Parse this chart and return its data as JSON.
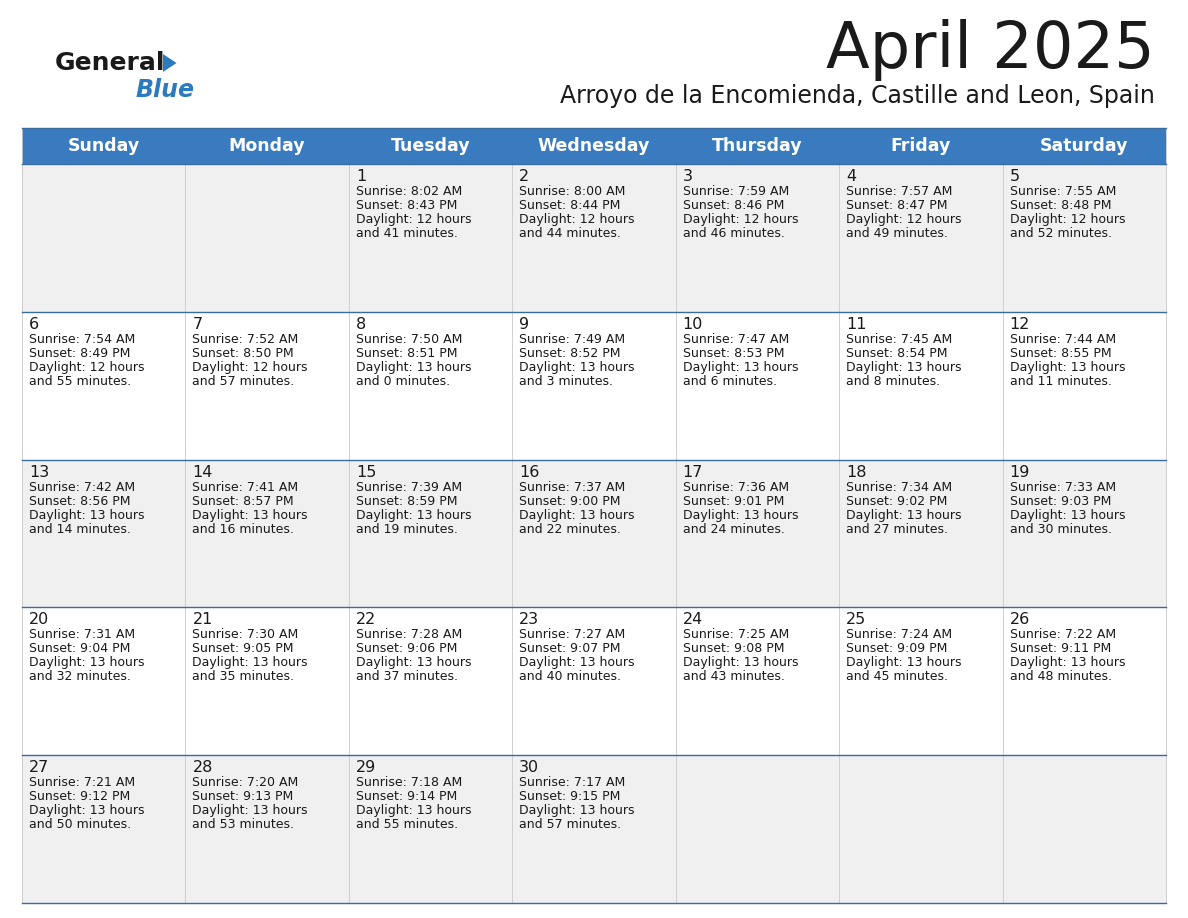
{
  "title": "April 2025",
  "subtitle": "Arroyo de la Encomienda, Castille and Leon, Spain",
  "header_bg": "#3a7abf",
  "header_text_color": "#ffffff",
  "row_bg_odd": "#f0f0f0",
  "row_bg_even": "#ffffff",
  "border_color": "#3a6b9f",
  "day_headers": [
    "Sunday",
    "Monday",
    "Tuesday",
    "Wednesday",
    "Thursday",
    "Friday",
    "Saturday"
  ],
  "logo_general_color": "#1a1a1a",
  "logo_blue_color": "#2b7bbf",
  "logo_triangle_color": "#2b7bbf",
  "title_color": "#1a1a1a",
  "text_color": "#1a1a1a",
  "weeks": [
    [
      {
        "day": "",
        "sunrise": "",
        "sunset": "",
        "daylight": ""
      },
      {
        "day": "",
        "sunrise": "",
        "sunset": "",
        "daylight": ""
      },
      {
        "day": "1",
        "sunrise": "Sunrise: 8:02 AM",
        "sunset": "Sunset: 8:43 PM",
        "daylight": "Daylight: 12 hours\nand 41 minutes."
      },
      {
        "day": "2",
        "sunrise": "Sunrise: 8:00 AM",
        "sunset": "Sunset: 8:44 PM",
        "daylight": "Daylight: 12 hours\nand 44 minutes."
      },
      {
        "day": "3",
        "sunrise": "Sunrise: 7:59 AM",
        "sunset": "Sunset: 8:46 PM",
        "daylight": "Daylight: 12 hours\nand 46 minutes."
      },
      {
        "day": "4",
        "sunrise": "Sunrise: 7:57 AM",
        "sunset": "Sunset: 8:47 PM",
        "daylight": "Daylight: 12 hours\nand 49 minutes."
      },
      {
        "day": "5",
        "sunrise": "Sunrise: 7:55 AM",
        "sunset": "Sunset: 8:48 PM",
        "daylight": "Daylight: 12 hours\nand 52 minutes."
      }
    ],
    [
      {
        "day": "6",
        "sunrise": "Sunrise: 7:54 AM",
        "sunset": "Sunset: 8:49 PM",
        "daylight": "Daylight: 12 hours\nand 55 minutes."
      },
      {
        "day": "7",
        "sunrise": "Sunrise: 7:52 AM",
        "sunset": "Sunset: 8:50 PM",
        "daylight": "Daylight: 12 hours\nand 57 minutes."
      },
      {
        "day": "8",
        "sunrise": "Sunrise: 7:50 AM",
        "sunset": "Sunset: 8:51 PM",
        "daylight": "Daylight: 13 hours\nand 0 minutes."
      },
      {
        "day": "9",
        "sunrise": "Sunrise: 7:49 AM",
        "sunset": "Sunset: 8:52 PM",
        "daylight": "Daylight: 13 hours\nand 3 minutes."
      },
      {
        "day": "10",
        "sunrise": "Sunrise: 7:47 AM",
        "sunset": "Sunset: 8:53 PM",
        "daylight": "Daylight: 13 hours\nand 6 minutes."
      },
      {
        "day": "11",
        "sunrise": "Sunrise: 7:45 AM",
        "sunset": "Sunset: 8:54 PM",
        "daylight": "Daylight: 13 hours\nand 8 minutes."
      },
      {
        "day": "12",
        "sunrise": "Sunrise: 7:44 AM",
        "sunset": "Sunset: 8:55 PM",
        "daylight": "Daylight: 13 hours\nand 11 minutes."
      }
    ],
    [
      {
        "day": "13",
        "sunrise": "Sunrise: 7:42 AM",
        "sunset": "Sunset: 8:56 PM",
        "daylight": "Daylight: 13 hours\nand 14 minutes."
      },
      {
        "day": "14",
        "sunrise": "Sunrise: 7:41 AM",
        "sunset": "Sunset: 8:57 PM",
        "daylight": "Daylight: 13 hours\nand 16 minutes."
      },
      {
        "day": "15",
        "sunrise": "Sunrise: 7:39 AM",
        "sunset": "Sunset: 8:59 PM",
        "daylight": "Daylight: 13 hours\nand 19 minutes."
      },
      {
        "day": "16",
        "sunrise": "Sunrise: 7:37 AM",
        "sunset": "Sunset: 9:00 PM",
        "daylight": "Daylight: 13 hours\nand 22 minutes."
      },
      {
        "day": "17",
        "sunrise": "Sunrise: 7:36 AM",
        "sunset": "Sunset: 9:01 PM",
        "daylight": "Daylight: 13 hours\nand 24 minutes."
      },
      {
        "day": "18",
        "sunrise": "Sunrise: 7:34 AM",
        "sunset": "Sunset: 9:02 PM",
        "daylight": "Daylight: 13 hours\nand 27 minutes."
      },
      {
        "day": "19",
        "sunrise": "Sunrise: 7:33 AM",
        "sunset": "Sunset: 9:03 PM",
        "daylight": "Daylight: 13 hours\nand 30 minutes."
      }
    ],
    [
      {
        "day": "20",
        "sunrise": "Sunrise: 7:31 AM",
        "sunset": "Sunset: 9:04 PM",
        "daylight": "Daylight: 13 hours\nand 32 minutes."
      },
      {
        "day": "21",
        "sunrise": "Sunrise: 7:30 AM",
        "sunset": "Sunset: 9:05 PM",
        "daylight": "Daylight: 13 hours\nand 35 minutes."
      },
      {
        "day": "22",
        "sunrise": "Sunrise: 7:28 AM",
        "sunset": "Sunset: 9:06 PM",
        "daylight": "Daylight: 13 hours\nand 37 minutes."
      },
      {
        "day": "23",
        "sunrise": "Sunrise: 7:27 AM",
        "sunset": "Sunset: 9:07 PM",
        "daylight": "Daylight: 13 hours\nand 40 minutes."
      },
      {
        "day": "24",
        "sunrise": "Sunrise: 7:25 AM",
        "sunset": "Sunset: 9:08 PM",
        "daylight": "Daylight: 13 hours\nand 43 minutes."
      },
      {
        "day": "25",
        "sunrise": "Sunrise: 7:24 AM",
        "sunset": "Sunset: 9:09 PM",
        "daylight": "Daylight: 13 hours\nand 45 minutes."
      },
      {
        "day": "26",
        "sunrise": "Sunrise: 7:22 AM",
        "sunset": "Sunset: 9:11 PM",
        "daylight": "Daylight: 13 hours\nand 48 minutes."
      }
    ],
    [
      {
        "day": "27",
        "sunrise": "Sunrise: 7:21 AM",
        "sunset": "Sunset: 9:12 PM",
        "daylight": "Daylight: 13 hours\nand 50 minutes."
      },
      {
        "day": "28",
        "sunrise": "Sunrise: 7:20 AM",
        "sunset": "Sunset: 9:13 PM",
        "daylight": "Daylight: 13 hours\nand 53 minutes."
      },
      {
        "day": "29",
        "sunrise": "Sunrise: 7:18 AM",
        "sunset": "Sunset: 9:14 PM",
        "daylight": "Daylight: 13 hours\nand 55 minutes."
      },
      {
        "day": "30",
        "sunrise": "Sunrise: 7:17 AM",
        "sunset": "Sunset: 9:15 PM",
        "daylight": "Daylight: 13 hours\nand 57 minutes."
      },
      {
        "day": "",
        "sunrise": "",
        "sunset": "",
        "daylight": ""
      },
      {
        "day": "",
        "sunrise": "",
        "sunset": "",
        "daylight": ""
      },
      {
        "day": "",
        "sunrise": "",
        "sunset": "",
        "daylight": ""
      }
    ]
  ]
}
